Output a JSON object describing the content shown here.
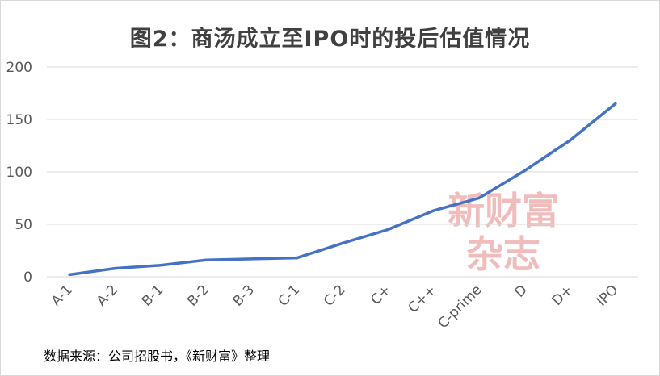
{
  "title": "图2：商汤成立至IPO时的投后估值情况",
  "source": "数据来源：公司招股书，《新财富》整理",
  "watermark": [
    "新财富",
    "杂志"
  ],
  "chart_data": {
    "type": "line",
    "title": "图2：商汤成立至IPO时的投后估值情况",
    "xlabel": "",
    "ylabel": "",
    "ylim": [
      0,
      200
    ],
    "yticks": [
      0,
      50,
      100,
      150,
      200
    ],
    "grid": true,
    "categories": [
      "A-1",
      "A-2",
      "B-1",
      "B-2",
      "B-3",
      "C-1",
      "C-2",
      "C+",
      "C++",
      "C-prime",
      "D",
      "D+",
      "IPO"
    ],
    "series": [
      {
        "color": "#4472c4",
        "values": [
          2,
          8,
          11,
          16,
          17,
          18,
          32,
          45,
          63,
          75,
          101,
          130,
          165
        ]
      }
    ]
  }
}
